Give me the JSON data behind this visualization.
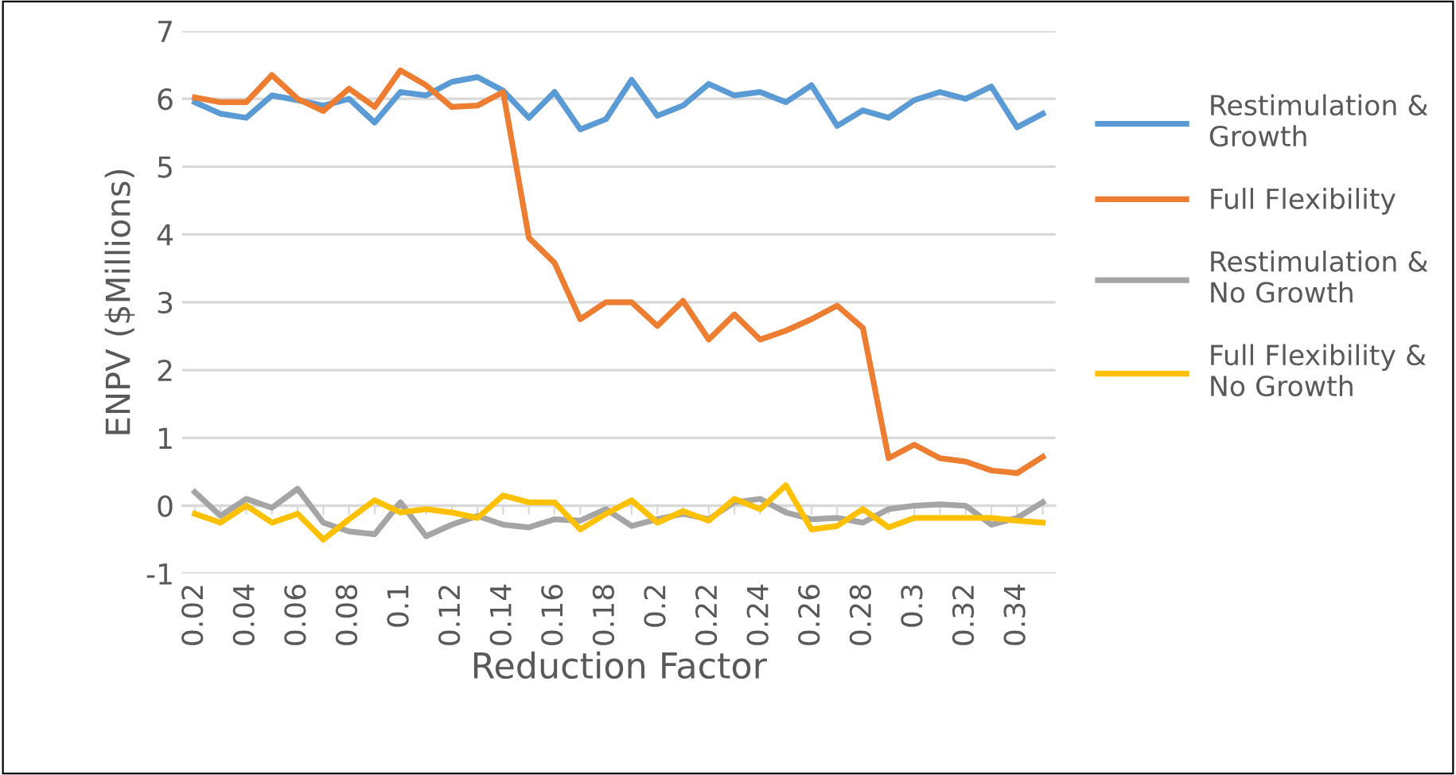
{
  "chart_data": {
    "type": "line",
    "xlabel": "Reduction Factor",
    "ylabel": "ENPV ($Millions)",
    "categories": [
      "0.02",
      null,
      "0.04",
      null,
      "0.06",
      null,
      "0.08",
      null,
      "0.1",
      null,
      "0.12",
      null,
      "0.14",
      null,
      "0.16",
      null,
      "0.18",
      null,
      "0.2",
      null,
      "0.22",
      null,
      "0.24",
      null,
      "0.26",
      null,
      "0.28",
      null,
      "0.3",
      null,
      "0.32",
      null,
      "0.34",
      null
    ],
    "series": [
      {
        "name": "Restimulation & Growth",
        "color": "#5b9bd5",
        "values": [
          5.95,
          5.78,
          5.72,
          6.05,
          5.98,
          5.9,
          6.0,
          5.65,
          6.1,
          6.05,
          6.25,
          6.32,
          6.12,
          5.72,
          6.1,
          5.55,
          5.7,
          6.28,
          5.75,
          5.9,
          6.22,
          6.05,
          6.1,
          5.95,
          6.2,
          5.6,
          5.83,
          5.72,
          5.98,
          6.1,
          6.0,
          6.18,
          5.58,
          5.78
        ]
      },
      {
        "name": "Full Flexibility",
        "color": "#ed7d31",
        "values": [
          6.02,
          5.95,
          5.95,
          6.35,
          6.0,
          5.82,
          6.15,
          5.88,
          6.42,
          6.2,
          5.88,
          5.9,
          6.1,
          3.95,
          3.58,
          2.75,
          3.0,
          3.0,
          2.65,
          3.02,
          2.45,
          2.82,
          2.45,
          2.58,
          2.75,
          2.95,
          2.62,
          0.7,
          0.9,
          0.7,
          0.65,
          0.52,
          0.48,
          0.72
        ]
      },
      {
        "name": "Restimulation & No Growth",
        "color": "#a5a5a5",
        "values": [
          0.2,
          -0.15,
          0.1,
          -0.03,
          0.25,
          -0.25,
          -0.38,
          -0.42,
          0.05,
          -0.45,
          -0.28,
          -0.15,
          -0.28,
          -0.32,
          -0.2,
          -0.22,
          -0.05,
          -0.3,
          -0.2,
          -0.12,
          -0.2,
          0.05,
          0.1,
          -0.1,
          -0.2,
          -0.18,
          -0.25,
          -0.05,
          0.0,
          0.02,
          0.0,
          -0.28,
          -0.18,
          0.05
        ]
      },
      {
        "name": "Full Flexibility & No Growth",
        "color": "#ffc000",
        "values": [
          -0.12,
          -0.25,
          0.0,
          -0.25,
          -0.12,
          -0.5,
          -0.2,
          0.08,
          -0.1,
          -0.05,
          -0.1,
          -0.18,
          0.15,
          0.05,
          0.05,
          -0.35,
          -0.12,
          0.08,
          -0.25,
          -0.08,
          -0.22,
          0.1,
          -0.05,
          0.3,
          -0.35,
          -0.3,
          -0.05,
          -0.32,
          -0.18,
          -0.18,
          -0.18,
          -0.18,
          -0.22,
          -0.25
        ]
      }
    ],
    "ylim": [
      -1,
      7
    ],
    "yticks": [
      -1,
      0,
      1,
      2,
      3,
      4,
      5,
      6,
      7
    ],
    "grid": "y",
    "legend": "right",
    "marker": "none",
    "line_style": "solid"
  }
}
